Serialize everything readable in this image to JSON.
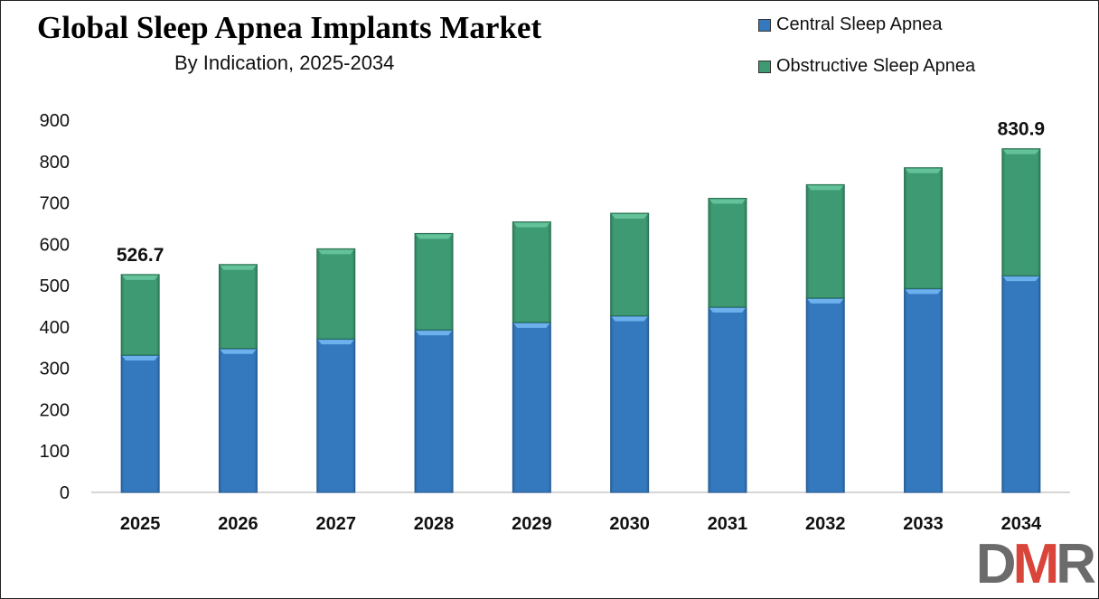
{
  "chart_data": {
    "type": "bar",
    "stacked": true,
    "title": "Global Sleep Apnea Implants Market",
    "subtitle": "By Indication, 2025-2034",
    "xlabel": "",
    "ylabel": "",
    "categories": [
      "2025",
      "2026",
      "2027",
      "2028",
      "2029",
      "2030",
      "2031",
      "2032",
      "2033",
      "2034"
    ],
    "series": [
      {
        "name": "Central Sleep Apnea",
        "color": "#3479be",
        "values": [
          332,
          348,
          371,
          393,
          411,
          427,
          448,
          470,
          493,
          524
        ]
      },
      {
        "name": "Obstructive Sleep Apnea",
        "color": "#3d9a72",
        "values": [
          194.7,
          203,
          218,
          233,
          243,
          248,
          263,
          274,
          292,
          306.9
        ]
      }
    ],
    "ylim": [
      0,
      900
    ],
    "yticks": [
      "0",
      "100",
      "200",
      "300",
      "400",
      "500",
      "600",
      "700",
      "800",
      "900"
    ],
    "grid": false,
    "legend": "top-right",
    "annotations": [
      {
        "category": "2025",
        "text": "526.7",
        "value": 526.7
      },
      {
        "category": "2034",
        "text": "830.9",
        "value": 830.9
      }
    ]
  },
  "logo": {
    "text": "DMR",
    "letters": [
      "D",
      "M",
      "R"
    ],
    "colors": [
      "#6b6b6b",
      "#d9453a",
      "#6b6b6b"
    ]
  }
}
